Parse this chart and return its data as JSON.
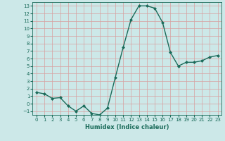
{
  "xlabel": "Humidex (Indice chaleur)",
  "x": [
    0,
    1,
    2,
    3,
    4,
    5,
    6,
    7,
    8,
    9,
    10,
    11,
    12,
    13,
    14,
    15,
    16,
    17,
    18,
    19,
    20,
    21,
    22,
    23
  ],
  "y": [
    1.5,
    1.3,
    0.7,
    0.8,
    -0.3,
    -1.0,
    -0.3,
    -1.3,
    -1.5,
    -0.6,
    3.5,
    7.5,
    11.2,
    13.0,
    13.0,
    12.7,
    10.8,
    6.8,
    5.0,
    5.5,
    5.5,
    5.7,
    6.2,
    6.4
  ],
  "line_color": "#1a6b5a",
  "marker": "D",
  "marker_size": 2.0,
  "bg_color": "#cce8e8",
  "grid_color": "#b0d0d0",
  "ylim": [
    -1.5,
    13.5
  ],
  "xlim": [
    -0.5,
    23.5
  ],
  "yticks": [
    -1,
    0,
    1,
    2,
    3,
    4,
    5,
    6,
    7,
    8,
    9,
    10,
    11,
    12,
    13
  ],
  "xticks": [
    0,
    1,
    2,
    3,
    4,
    5,
    6,
    7,
    8,
    9,
    10,
    11,
    12,
    13,
    14,
    15,
    16,
    17,
    18,
    19,
    20,
    21,
    22,
    23
  ],
  "tick_fontsize": 5.0,
  "xlabel_fontsize": 6.0,
  "linewidth": 1.0
}
